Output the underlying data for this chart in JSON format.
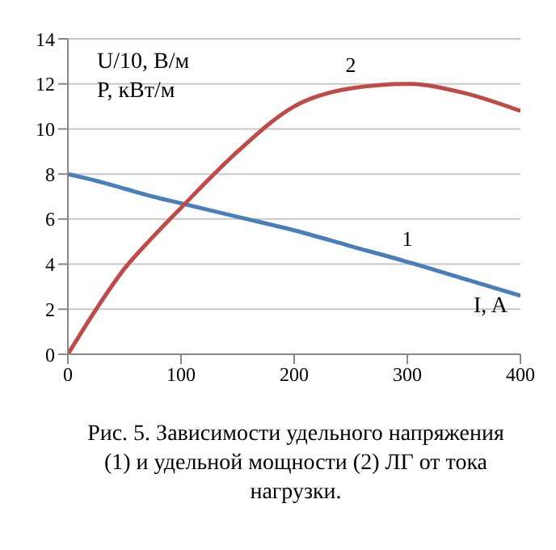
{
  "chart_data": {
    "type": "line",
    "xlabel": "I, A",
    "ylabel": "U/10, В/м\nP, кВт/м",
    "x": [
      0,
      25,
      50,
      75,
      100,
      150,
      200,
      250,
      300,
      350,
      400
    ],
    "series": [
      {
        "name": "1",
        "color": "#4a7ebb",
        "values": [
          8,
          7.7,
          7.35,
          7.0,
          6.7,
          6.1,
          5.5,
          4.8,
          4.1,
          3.35,
          2.6
        ]
      },
      {
        "name": "2",
        "color": "#be4b48",
        "values": [
          0,
          2,
          3.8,
          5.2,
          6.5,
          9,
          11,
          11.8,
          12,
          11.6,
          10.8
        ]
      }
    ],
    "xlim": [
      0,
      400
    ],
    "xticks": [
      0,
      100,
      200,
      300,
      400
    ],
    "ylim": [
      0,
      14
    ],
    "yticks": [
      0,
      2,
      4,
      6,
      8,
      10,
      12,
      14
    ],
    "grid": "y",
    "marker": "none",
    "line_style": "solid",
    "annotations": [
      "Рис. 5. Зависимости удельного напряжения (1) и удельной мощности (2) ЛГ от тока нагрузки."
    ]
  }
}
